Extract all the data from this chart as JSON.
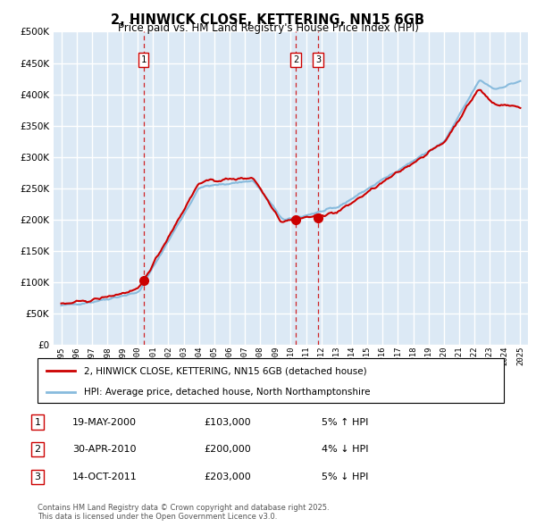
{
  "title": "2, HINWICK CLOSE, KETTERING, NN15 6GB",
  "subtitle": "Price paid vs. HM Land Registry's House Price Index (HPI)",
  "title_fontsize": 10.5,
  "subtitle_fontsize": 8.5,
  "plot_bg_color": "#dce9f5",
  "grid_color": "#ffffff",
  "hpi_line_color": "#88bbdd",
  "price_line_color": "#cc0000",
  "sale_marker_color": "#cc0000",
  "ylim": [
    0,
    500000
  ],
  "yticks": [
    0,
    50000,
    100000,
    150000,
    200000,
    250000,
    300000,
    350000,
    400000,
    450000,
    500000
  ],
  "sales": [
    {
      "num": 1,
      "date": "19-MAY-2000",
      "price": 103000,
      "year": 2000.38,
      "pct": "5%",
      "dir": "↑"
    },
    {
      "num": 2,
      "date": "30-APR-2010",
      "price": 200000,
      "year": 2010.33,
      "pct": "4%",
      "dir": "↓"
    },
    {
      "num": 3,
      "date": "14-OCT-2011",
      "price": 203000,
      "year": 2011.79,
      "pct": "5%",
      "dir": "↓"
    }
  ],
  "legend_entries": [
    "2, HINWICK CLOSE, KETTERING, NN15 6GB (detached house)",
    "HPI: Average price, detached house, North Northamptonshire"
  ],
  "footnote": "Contains HM Land Registry data © Crown copyright and database right 2025.\nThis data is licensed under the Open Government Licence v3.0.",
  "xmin": 1994.5,
  "xmax": 2025.5
}
